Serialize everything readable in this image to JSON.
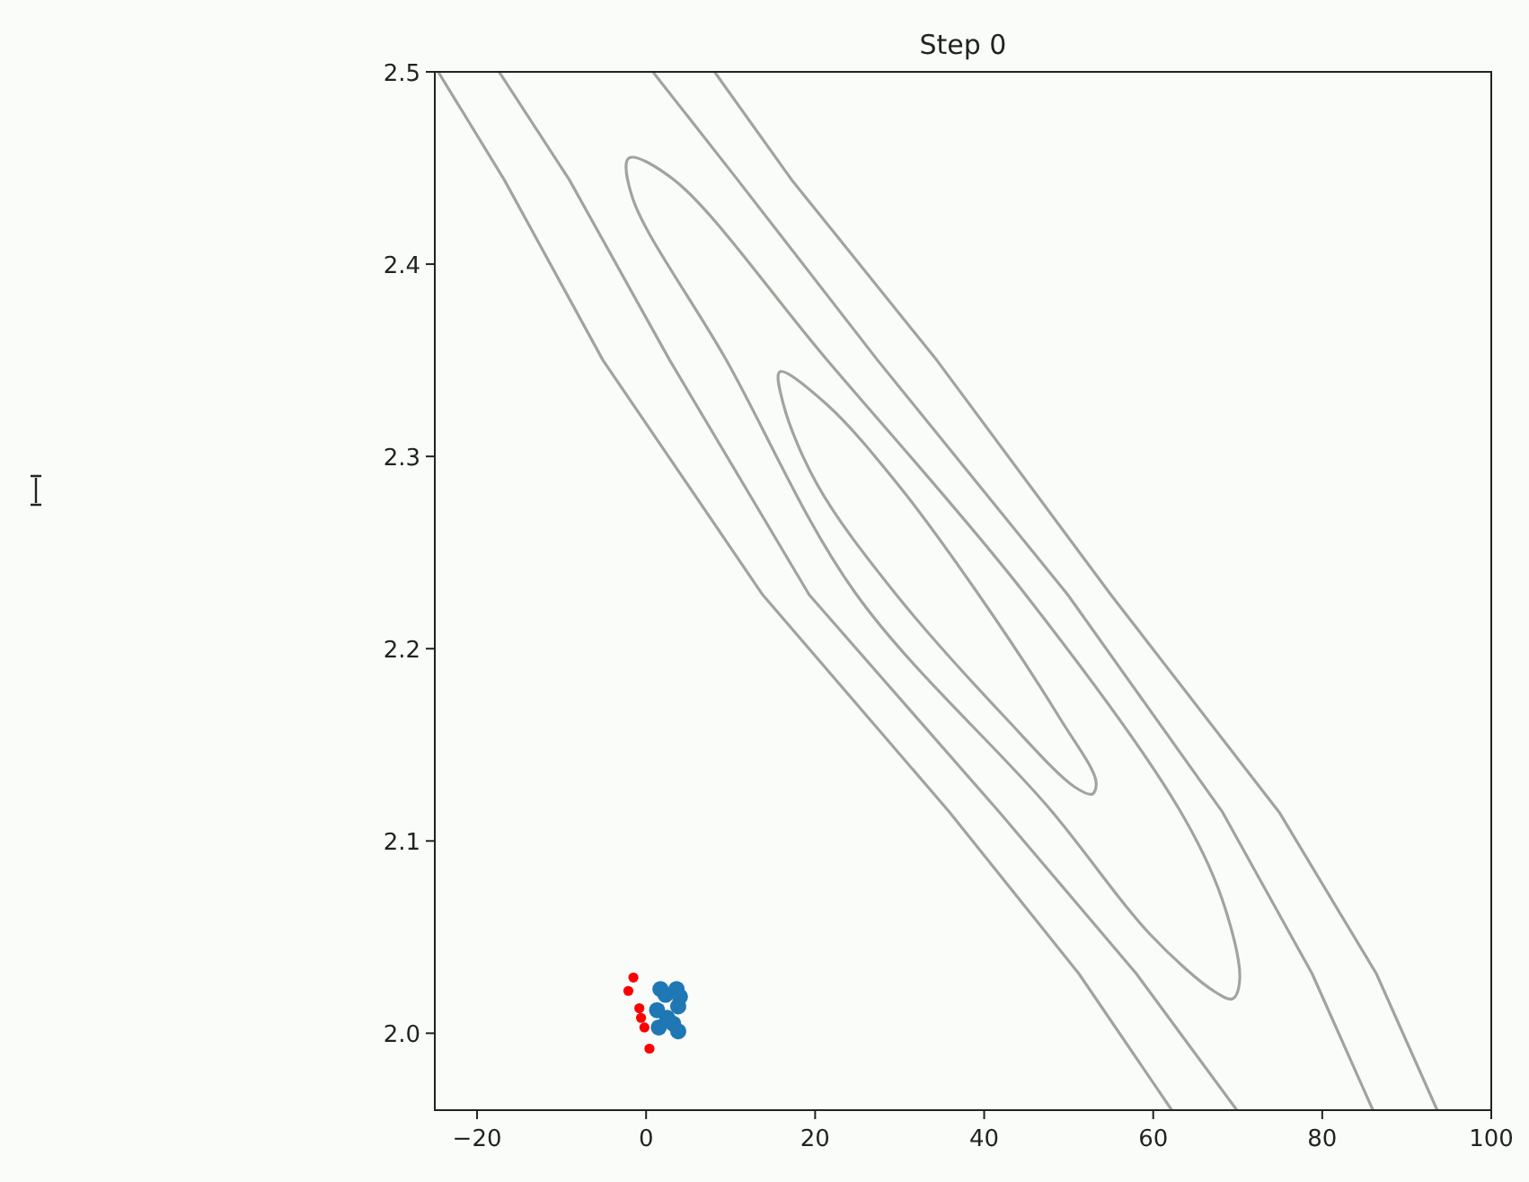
{
  "chart_data": {
    "type": "scatter",
    "title": "Step 0",
    "xlim": [
      -25,
      100
    ],
    "ylim": [
      1.96,
      2.5
    ],
    "xticks": [
      {
        "value": -20,
        "label": "−20"
      },
      0,
      20,
      40,
      60,
      80,
      100
    ],
    "yticks": [
      {
        "value": 2,
        "label": "2.0"
      },
      2.1,
      2.2,
      2.3,
      2.4,
      2.5
    ],
    "grid": false,
    "series": [
      {
        "type": "line",
        "color": "#a0a49c",
        "marker": "none",
        "x": [
          -24.6,
          -16.8,
          -5.1,
          13.8,
          35.9,
          51.2,
          62.2
        ],
        "values": [
          2.5,
          2.444,
          2.35,
          2.228,
          2.115,
          2.031,
          1.96
        ]
      },
      {
        "type": "line",
        "color": "#a0a49c",
        "marker": "none",
        "x": [
          -17.4,
          -9.1,
          2.8,
          19.3,
          41.8,
          58.0,
          69.9
        ],
        "values": [
          2.5,
          2.444,
          2.35,
          2.228,
          2.115,
          2.031,
          1.96
        ]
      },
      {
        "type": "line",
        "color": "#a0a49c",
        "marker": "none",
        "x": [
          0.8,
          10.8,
          27.4,
          49.9,
          68.2,
          78.8,
          86.0
        ],
        "values": [
          2.5,
          2.444,
          2.35,
          2.228,
          2.115,
          2.031,
          1.96
        ]
      },
      {
        "type": "line",
        "color": "#a0a49c",
        "marker": "none",
        "x": [
          8.1,
          17.2,
          34.4,
          55.0,
          74.9,
          86.4,
          93.6
        ],
        "values": [
          2.5,
          2.444,
          2.35,
          2.228,
          2.115,
          2.031,
          1.96
        ]
      },
      {
        "type": "scatter",
        "color": "#ff0000",
        "marker": "circle",
        "x": [
          -1.5,
          -2.1,
          -0.8,
          -0.6,
          -0.2,
          0.4
        ],
        "values": [
          2.029,
          2.022,
          2.013,
          2.008,
          2.003,
          1.992
        ]
      },
      {
        "type": "scatter",
        "color": "#1f77b4",
        "marker": "circle",
        "x": [
          1.7,
          3.6,
          4.0,
          3.8,
          1.5,
          2.5,
          3.2,
          3.8,
          1.3,
          2.3
        ],
        "values": [
          2.023,
          2.023,
          2.019,
          2.014,
          2.003,
          2.008,
          2.005,
          2.001,
          2.012,
          2.02
        ]
      }
    ]
  }
}
